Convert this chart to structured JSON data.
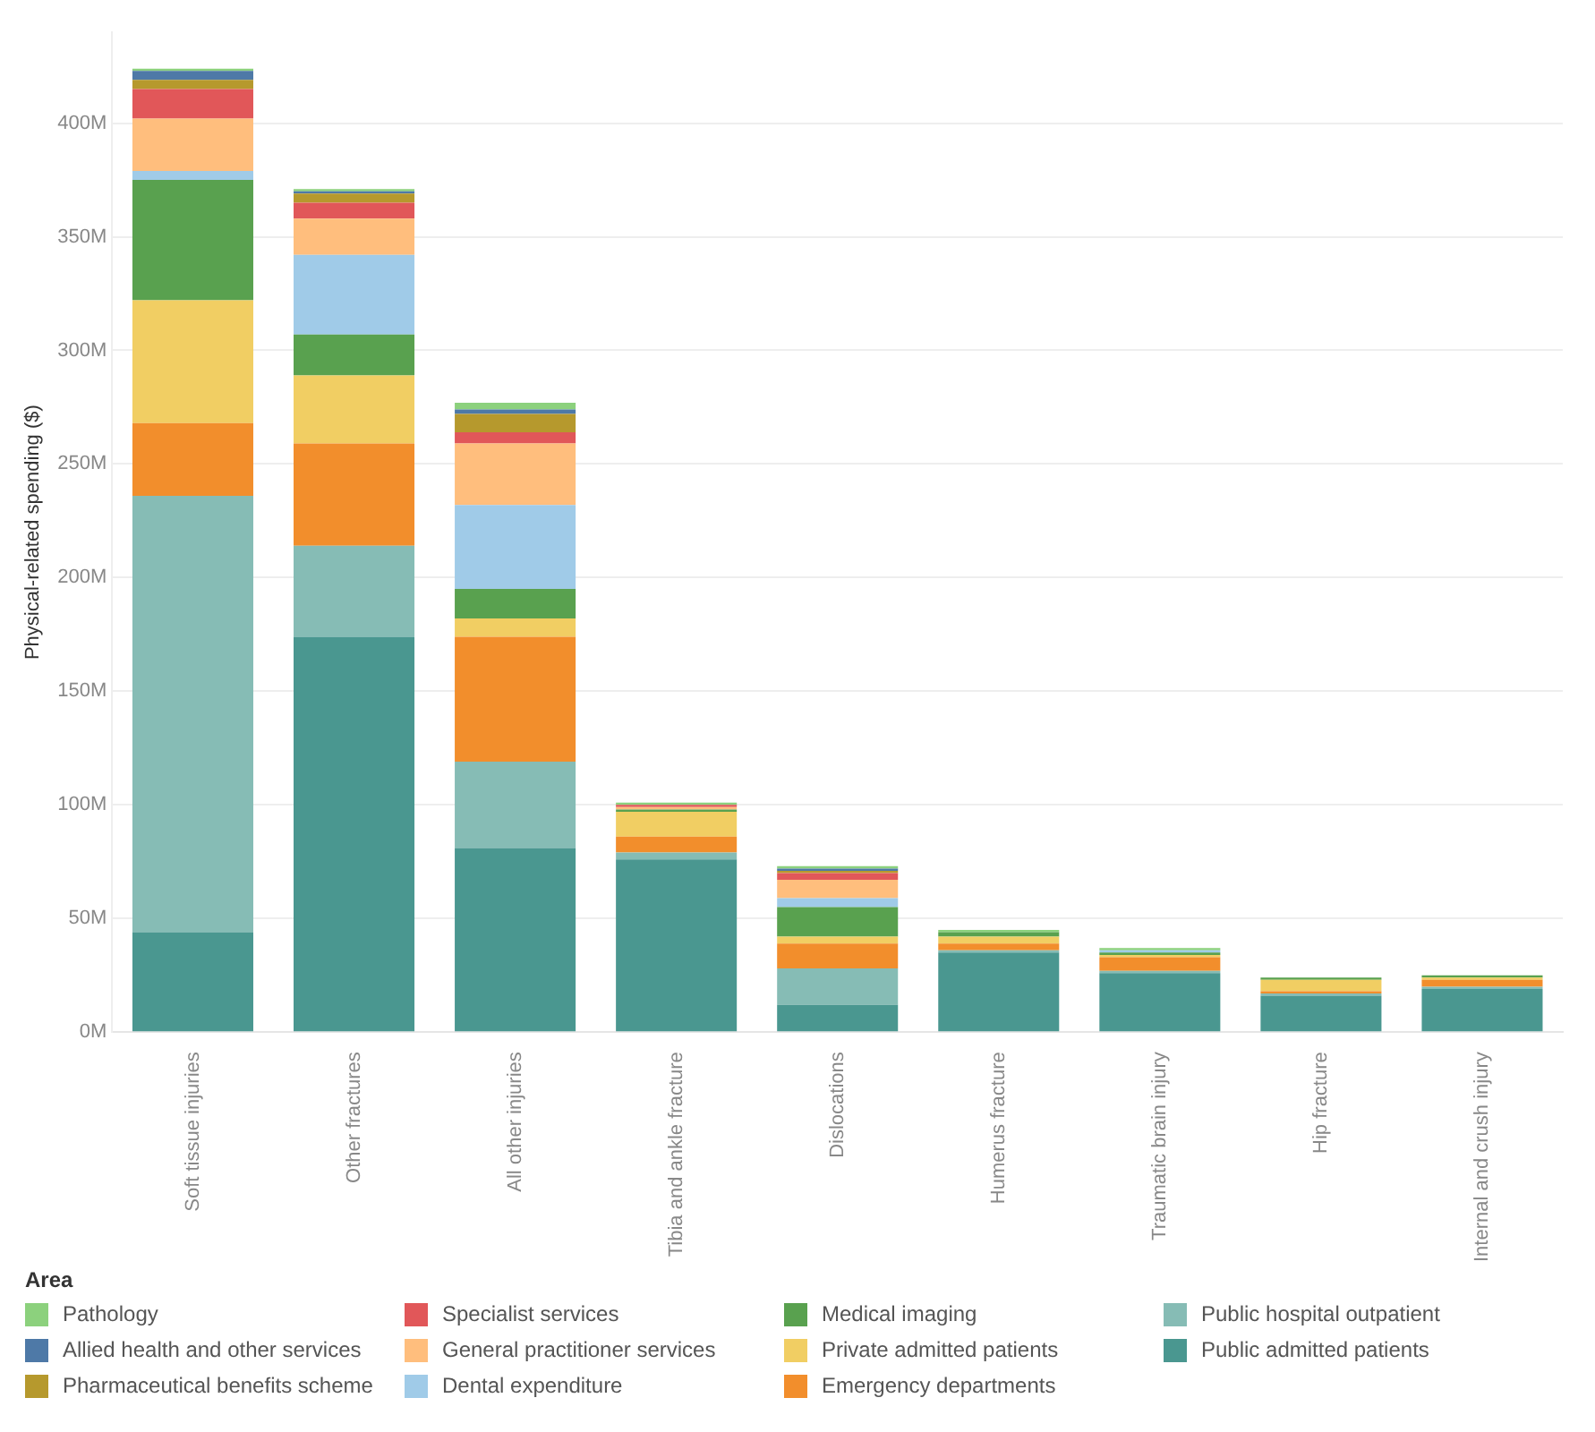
{
  "chart_data": {
    "type": "bar",
    "stacked": true,
    "ylabel": "Physical-related spending ($)",
    "legend_title": "Area",
    "legend": "bottom",
    "grid": "y",
    "categories": [
      "Soft tissue injuries",
      "Other fractures",
      "All other injuries",
      "Tibia and ankle fracture",
      "Dislocations",
      "Humerus fracture",
      "Traumatic brain injury",
      "Hip fracture",
      "Internal and crush injury"
    ],
    "ylim": [
      0,
      440
    ],
    "yticks": [
      {
        "value": 0,
        "label": "0M"
      },
      {
        "value": 50,
        "label": "50M"
      },
      {
        "value": 100,
        "label": "100M"
      },
      {
        "value": 150,
        "label": "150M"
      },
      {
        "value": 200,
        "label": "200M"
      },
      {
        "value": 250,
        "label": "250M"
      },
      {
        "value": 300,
        "label": "300M"
      },
      {
        "value": 350,
        "label": "350M"
      },
      {
        "value": 400,
        "label": "400M"
      }
    ],
    "series": [
      {
        "name": "Public admitted patients",
        "color": "#4a9790",
        "values": [
          44,
          174,
          81,
          76,
          12,
          35,
          26,
          16,
          19
        ]
      },
      {
        "name": "Public hospital outpatient",
        "color": "#86bcb5",
        "values": [
          192,
          40,
          38,
          3,
          16,
          1,
          1,
          1,
          1
        ]
      },
      {
        "name": "Emergency departments",
        "color": "#f28e2c",
        "values": [
          32,
          45,
          55,
          7,
          11,
          3,
          6,
          1,
          3
        ]
      },
      {
        "name": "Private admitted patients",
        "color": "#f1ce63",
        "values": [
          54,
          30,
          8,
          11,
          3,
          3,
          1,
          5,
          1
        ]
      },
      {
        "name": "Medical imaging",
        "color": "#59a14f",
        "values": [
          53,
          18,
          13,
          1,
          13,
          2,
          1,
          1,
          1
        ]
      },
      {
        "name": "Dental expenditure",
        "color": "#a0cbe8",
        "values": [
          4,
          35,
          37,
          0,
          4,
          0,
          1,
          0,
          0
        ]
      },
      {
        "name": "General practitioner services",
        "color": "#ffbe7d",
        "values": [
          23,
          16,
          27,
          1,
          8,
          0,
          0,
          0,
          0
        ]
      },
      {
        "name": "Specialist services",
        "color": "#e15759",
        "values": [
          13,
          7,
          5,
          1,
          3,
          0,
          0,
          0,
          0
        ]
      },
      {
        "name": "Pharmaceutical benefits scheme",
        "color": "#b6992d",
        "values": [
          4,
          4,
          8,
          0,
          1,
          0,
          0,
          0,
          0
        ]
      },
      {
        "name": "Allied health and other services",
        "color": "#4e79a7",
        "values": [
          4,
          1,
          2,
          0,
          1,
          0,
          0,
          0,
          0
        ]
      },
      {
        "name": "Pathology",
        "color": "#8cd17d",
        "values": [
          1,
          1,
          3,
          1,
          1,
          1,
          1,
          0,
          0
        ]
      }
    ]
  }
}
